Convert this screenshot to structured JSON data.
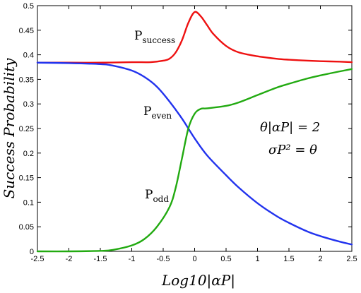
{
  "chart_data": {
    "type": "line",
    "xlabel": "Log10|αP|",
    "ylabel": "Success Probability",
    "xlim": [
      -2.5,
      2.5
    ],
    "ylim": [
      0,
      0.5
    ],
    "x_ticks": [
      "-2.5",
      "-2",
      "-1.5",
      "-1",
      "-0.5",
      "0",
      "0.5",
      "1",
      "1.5",
      "2",
      "2.5"
    ],
    "y_ticks": [
      "0",
      "0.05",
      "0.1",
      "0.15",
      "0.2",
      "0.25",
      "0.3",
      "0.35",
      "0.4",
      "0.45",
      "0.5"
    ],
    "grid": false,
    "legend": "none",
    "series": [
      {
        "name": "P_success",
        "color": "#ee1111",
        "x": [
          -2.5,
          -2.0,
          -1.5,
          -1.0,
          -0.7,
          -0.5,
          -0.4,
          -0.3,
          -0.2,
          -0.1,
          0.0,
          0.1,
          0.2,
          0.3,
          0.5,
          0.7,
          1.0,
          1.3,
          1.5,
          1.8,
          2.0,
          2.3,
          2.5
        ],
        "y": [
          0.384,
          0.384,
          0.384,
          0.385,
          0.385,
          0.388,
          0.392,
          0.405,
          0.43,
          0.465,
          0.487,
          0.478,
          0.46,
          0.442,
          0.418,
          0.405,
          0.397,
          0.392,
          0.39,
          0.388,
          0.387,
          0.386,
          0.385
        ]
      },
      {
        "name": "P_even",
        "color": "#2233ee",
        "x": [
          -2.5,
          -2.0,
          -1.5,
          -1.3,
          -1.0,
          -0.8,
          -0.6,
          -0.4,
          -0.2,
          0.0,
          0.2,
          0.5,
          0.7,
          1.0,
          1.3,
          1.5,
          1.8,
          2.0,
          2.3,
          2.5
        ],
        "y": [
          0.384,
          0.383,
          0.381,
          0.378,
          0.368,
          0.355,
          0.335,
          0.305,
          0.27,
          0.23,
          0.195,
          0.155,
          0.13,
          0.098,
          0.072,
          0.058,
          0.04,
          0.031,
          0.02,
          0.014
        ]
      },
      {
        "name": "P_odd",
        "color": "#22aa11",
        "x": [
          -2.5,
          -2.0,
          -1.5,
          -1.3,
          -1.0,
          -0.8,
          -0.6,
          -0.4,
          -0.3,
          -0.2,
          -0.1,
          0.0,
          0.1,
          0.2,
          0.5,
          0.7,
          1.0,
          1.3,
          1.5,
          1.8,
          2.0,
          2.3,
          2.5
        ],
        "y": [
          0.0,
          0.0,
          0.001,
          0.003,
          0.012,
          0.025,
          0.05,
          0.09,
          0.13,
          0.19,
          0.25,
          0.28,
          0.29,
          0.291,
          0.296,
          0.303,
          0.318,
          0.333,
          0.341,
          0.352,
          0.358,
          0.366,
          0.371
        ]
      }
    ],
    "annotations": {
      "p_success": {
        "base": "P",
        "sub": "success"
      },
      "p_even": {
        "base": "P",
        "sub": "even"
      },
      "p_odd": {
        "base": "P",
        "sub": "odd"
      },
      "eq1": "θ|αP| = 2",
      "eq2": "σP² = θ"
    }
  }
}
